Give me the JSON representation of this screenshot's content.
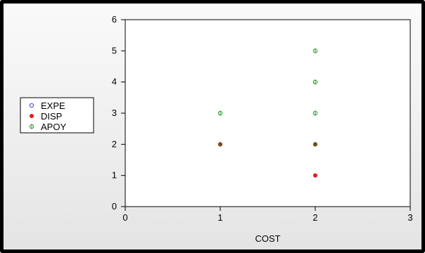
{
  "chart_data": {
    "type": "scatter",
    "title": "",
    "xlabel": "COST",
    "ylabel": "",
    "xlim": [
      0,
      3
    ],
    "ylim": [
      0,
      6
    ],
    "x_ticks": [
      "0",
      "1",
      "2",
      "3"
    ],
    "y_ticks": [
      "0",
      "1",
      "2",
      "3",
      "4",
      "5",
      "6"
    ],
    "grid": false,
    "legend": "left",
    "series": [
      {
        "name": "EXPE",
        "color": "#2a3fd0",
        "marker": "open-circle",
        "points": [
          [
            1,
            2
          ],
          [
            2,
            2
          ]
        ]
      },
      {
        "name": "DISP",
        "color": "#e02020",
        "marker": "filled-circle",
        "points": [
          [
            1,
            2
          ],
          [
            2,
            2
          ],
          [
            2,
            1
          ]
        ]
      },
      {
        "name": "APOY",
        "color": "#2e9a2e",
        "marker": "circle-plus",
        "points": [
          [
            1,
            2
          ],
          [
            1,
            3
          ],
          [
            2,
            2
          ],
          [
            2,
            3
          ],
          [
            2,
            4
          ],
          [
            2,
            5
          ]
        ]
      }
    ],
    "overlap_color": "#7a4a1a"
  }
}
